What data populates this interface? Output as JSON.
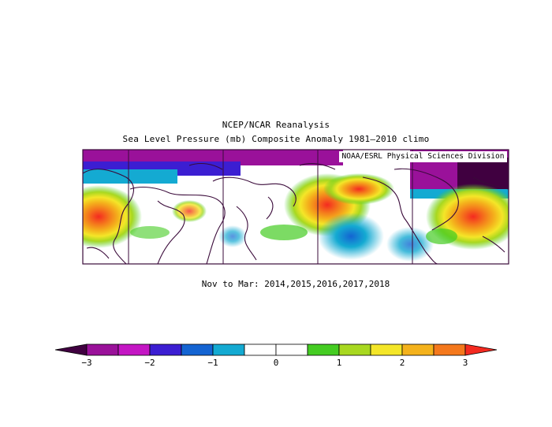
{
  "title_line1": "NCEP/NCAR Reanalysis",
  "title_line2": "Sea Level Pressure (mb) Composite Anomaly 1981–2010 climo",
  "credit": "NOAA/ESRL Physical Sciences Division",
  "subtitle": "Nov to Mar: 2014,2015,2016,2017,2018",
  "colorbar": {
    "labels": [
      "−3",
      "−2",
      "−1",
      "0",
      "1",
      "2",
      "3"
    ],
    "colors": [
      "#400040",
      "#9a119a",
      "#c416c4",
      "#3c1ed2",
      "#1464d2",
      "#14aad2",
      "#ffffff",
      "#ffffff",
      "#44cc22",
      "#a8d820",
      "#f4e628",
      "#f4b21c",
      "#f4781c",
      "#f42a20"
    ],
    "min": -3,
    "max": 3
  }
}
